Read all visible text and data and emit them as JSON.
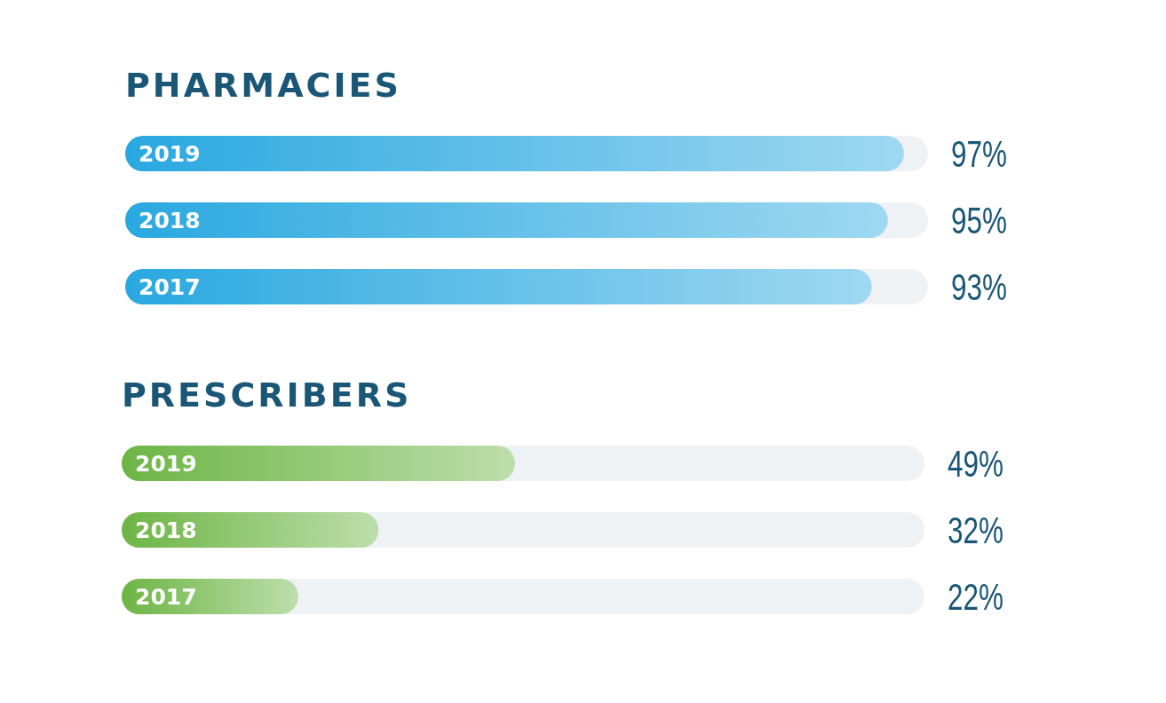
{
  "chart_data": [
    {
      "type": "bar",
      "orientation": "horizontal",
      "title": "PHARMACIES",
      "categories": [
        "2019",
        "2018",
        "2017"
      ],
      "values": [
        97,
        95,
        93
      ],
      "value_labels": [
        "97%",
        "95%",
        "93%"
      ],
      "color": "#29a8e0",
      "xlim": [
        0,
        100
      ]
    },
    {
      "type": "bar",
      "orientation": "horizontal",
      "title": "PRESCRIBERS",
      "categories": [
        "2019",
        "2018",
        "2017"
      ],
      "values": [
        49,
        32,
        22
      ],
      "value_labels": [
        "49%",
        "32%",
        "22%"
      ],
      "color": "#6db545",
      "xlim": [
        0,
        100
      ]
    }
  ]
}
